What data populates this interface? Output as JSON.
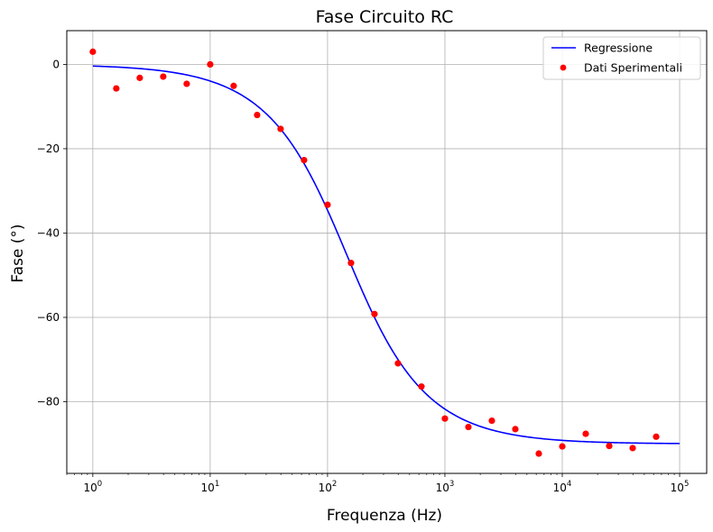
{
  "chart_data": {
    "type": "scatter",
    "title": "Fase Circuito RC",
    "xlabel": "Frequenza (Hz)",
    "ylabel": "Fase (°)",
    "x_scale": "log",
    "xlim": [
      0.6,
      170000
    ],
    "ylim": [
      -97,
      8
    ],
    "x_ticks": [
      {
        "base": "10",
        "exp": "0",
        "value": 1
      },
      {
        "base": "10",
        "exp": "1",
        "value": 10
      },
      {
        "base": "10",
        "exp": "2",
        "value": 100
      },
      {
        "base": "10",
        "exp": "3",
        "value": 1000
      },
      {
        "base": "10",
        "exp": "4",
        "value": 10000
      },
      {
        "base": "10",
        "exp": "5",
        "value": 100000
      }
    ],
    "y_ticks": [
      {
        "label": "0",
        "value": 0
      },
      {
        "label": "−20",
        "value": -20
      },
      {
        "label": "−40",
        "value": -40
      },
      {
        "label": "−60",
        "value": -60
      },
      {
        "label": "−80",
        "value": -80
      }
    ],
    "grid": true,
    "legend_position": "top-right",
    "series": [
      {
        "name": "Regressione",
        "kind": "line",
        "color": "#0000ff",
        "model": "phase = -atan(f / fc)",
        "fc": 145,
        "x_range": [
          1,
          100000
        ]
      },
      {
        "name": "Dati Sperimentali",
        "kind": "scatter",
        "color": "#ff0000",
        "points": [
          [
            1.0,
            3.0
          ],
          [
            1.585,
            -5.7
          ],
          [
            2.512,
            -3.2
          ],
          [
            3.981,
            -2.9
          ],
          [
            6.31,
            -4.6
          ],
          [
            10.0,
            0.0
          ],
          [
            15.85,
            -5.1
          ],
          [
            25.12,
            -12.0
          ],
          [
            39.81,
            -15.3
          ],
          [
            63.1,
            -22.7
          ],
          [
            100.0,
            -33.3
          ],
          [
            158.5,
            -47.1
          ],
          [
            251.2,
            -59.2
          ],
          [
            398.1,
            -70.9
          ],
          [
            631.0,
            -76.4
          ],
          [
            1000.0,
            -84.0
          ],
          [
            1585.0,
            -86.0
          ],
          [
            2512.0,
            -84.5
          ],
          [
            3981.0,
            -86.5
          ],
          [
            6310.0,
            -92.3
          ],
          [
            10000.0,
            -90.6
          ],
          [
            15850.0,
            -87.6
          ],
          [
            25120.0,
            -90.5
          ],
          [
            39810.0,
            -91.0
          ],
          [
            63100.0,
            -88.3
          ]
        ]
      }
    ]
  }
}
